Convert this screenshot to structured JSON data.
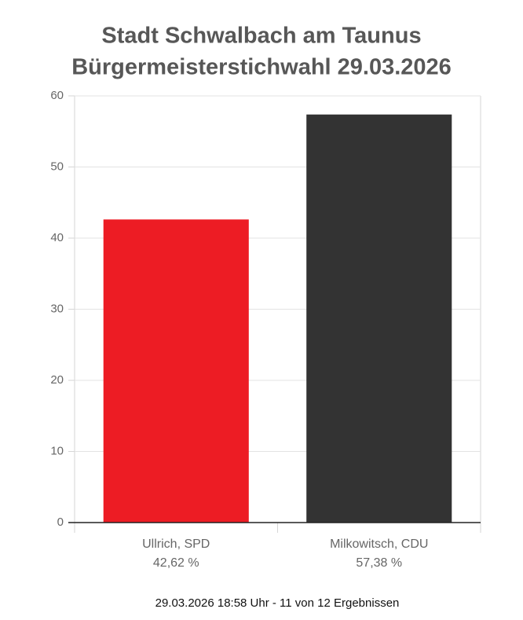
{
  "chart_data": {
    "type": "bar",
    "title": "Stadt Schwalbach am Taunus",
    "subtitle": "Bürgermeisterstichwahl 29.03.2026",
    "categories": [
      "Ullrich, SPD",
      "Milkowitsch, CDU"
    ],
    "values": [
      42.62,
      57.38
    ],
    "value_labels": [
      "42,62 %",
      "57,38 %"
    ],
    "colors": [
      "#ed1c24",
      "#333333"
    ],
    "ylim": [
      0,
      60
    ],
    "yticks": [
      0,
      10,
      20,
      30,
      40,
      50,
      60
    ],
    "grid": true,
    "note": "29.03.2026 18:58 Uhr - 11 von 12 Ergebnissen"
  }
}
